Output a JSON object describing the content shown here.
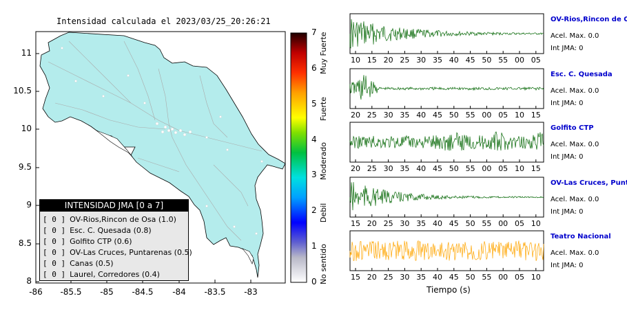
{
  "map": {
    "title": "Intensidad calculada el 2023/03/25_20:26:21",
    "y_ticks": [
      "11",
      "10.5",
      "10",
      "9.5",
      "9",
      "8.5",
      "8"
    ],
    "x_ticks": [
      "-86",
      "-85.5",
      "-85",
      "-84.5",
      "-84",
      "-83.5",
      "-83"
    ],
    "land_color": "#b4ecec",
    "legend": {
      "title": "INTENSIDAD JMA [0 a 7]",
      "items": [
        {
          "level": "[ 0 ]",
          "label": "OV-Rios,Rincon de Osa (1.0)"
        },
        {
          "level": "[ 0 ]",
          "label": "Esc. C. Quesada (0.8)"
        },
        {
          "level": "[ 0 ]",
          "label": "Golfito CTP (0.6)"
        },
        {
          "level": "[ 0 ]",
          "label": "OV-Las Cruces, Puntarenas (0.5)"
        },
        {
          "level": "[ 0 ]",
          "label": "Canas (0.5)"
        },
        {
          "level": "[ 0 ]",
          "label": "Laurel, Corredores (0.4)"
        }
      ]
    }
  },
  "colorbar": {
    "ticks": [
      "7",
      "6",
      "5",
      "4",
      "3",
      "2",
      "1",
      "0"
    ],
    "labels": [
      "Muy Fuerte",
      "Fuerte",
      "Moderado",
      "Debil",
      "No sentido"
    ]
  },
  "panels": [
    {
      "name": "OV-Rios,Rincon de Osa",
      "accel": "Acel. Max. 0.0",
      "jma": "Int JMA: 0",
      "trace_color": "#006400",
      "x_ticks": [
        "10",
        "15",
        "20",
        "25",
        "30",
        "35",
        "40",
        "45",
        "50",
        "55",
        "00",
        "05"
      ]
    },
    {
      "name": "Esc. C. Quesada",
      "accel": "Acel. Max. 0.0",
      "jma": "Int JMA: 0",
      "trace_color": "#006400",
      "x_ticks": [
        "20",
        "25",
        "30",
        "35",
        "40",
        "45",
        "50",
        "55",
        "00",
        "05",
        "10",
        "15"
      ]
    },
    {
      "name": "Golfito CTP",
      "accel": "Acel. Max. 0.0",
      "jma": "Int JMA: 0",
      "trace_color": "#006400",
      "x_ticks": [
        "20",
        "25",
        "30",
        "35",
        "40",
        "45",
        "50",
        "55",
        "00",
        "05",
        "10",
        "15"
      ]
    },
    {
      "name": "OV-Las Cruces, Puntar",
      "accel": "Acel. Max. 0.0",
      "jma": "Int JMA: 0",
      "trace_color": "#006400",
      "x_ticks": [
        "15",
        "20",
        "25",
        "30",
        "35",
        "40",
        "45",
        "50",
        "55",
        "00",
        "05",
        "10"
      ]
    },
    {
      "name": "Teatro Nacional",
      "accel": "Acel. Max. 0.0",
      "jma": "Int JMA: 0",
      "trace_color": "#ffa500",
      "x_ticks": [
        "15",
        "20",
        "25",
        "30",
        "35",
        "40",
        "45",
        "50",
        "55",
        "00",
        "05",
        "10"
      ]
    }
  ],
  "time_axis_label": "Tiempo (s)"
}
